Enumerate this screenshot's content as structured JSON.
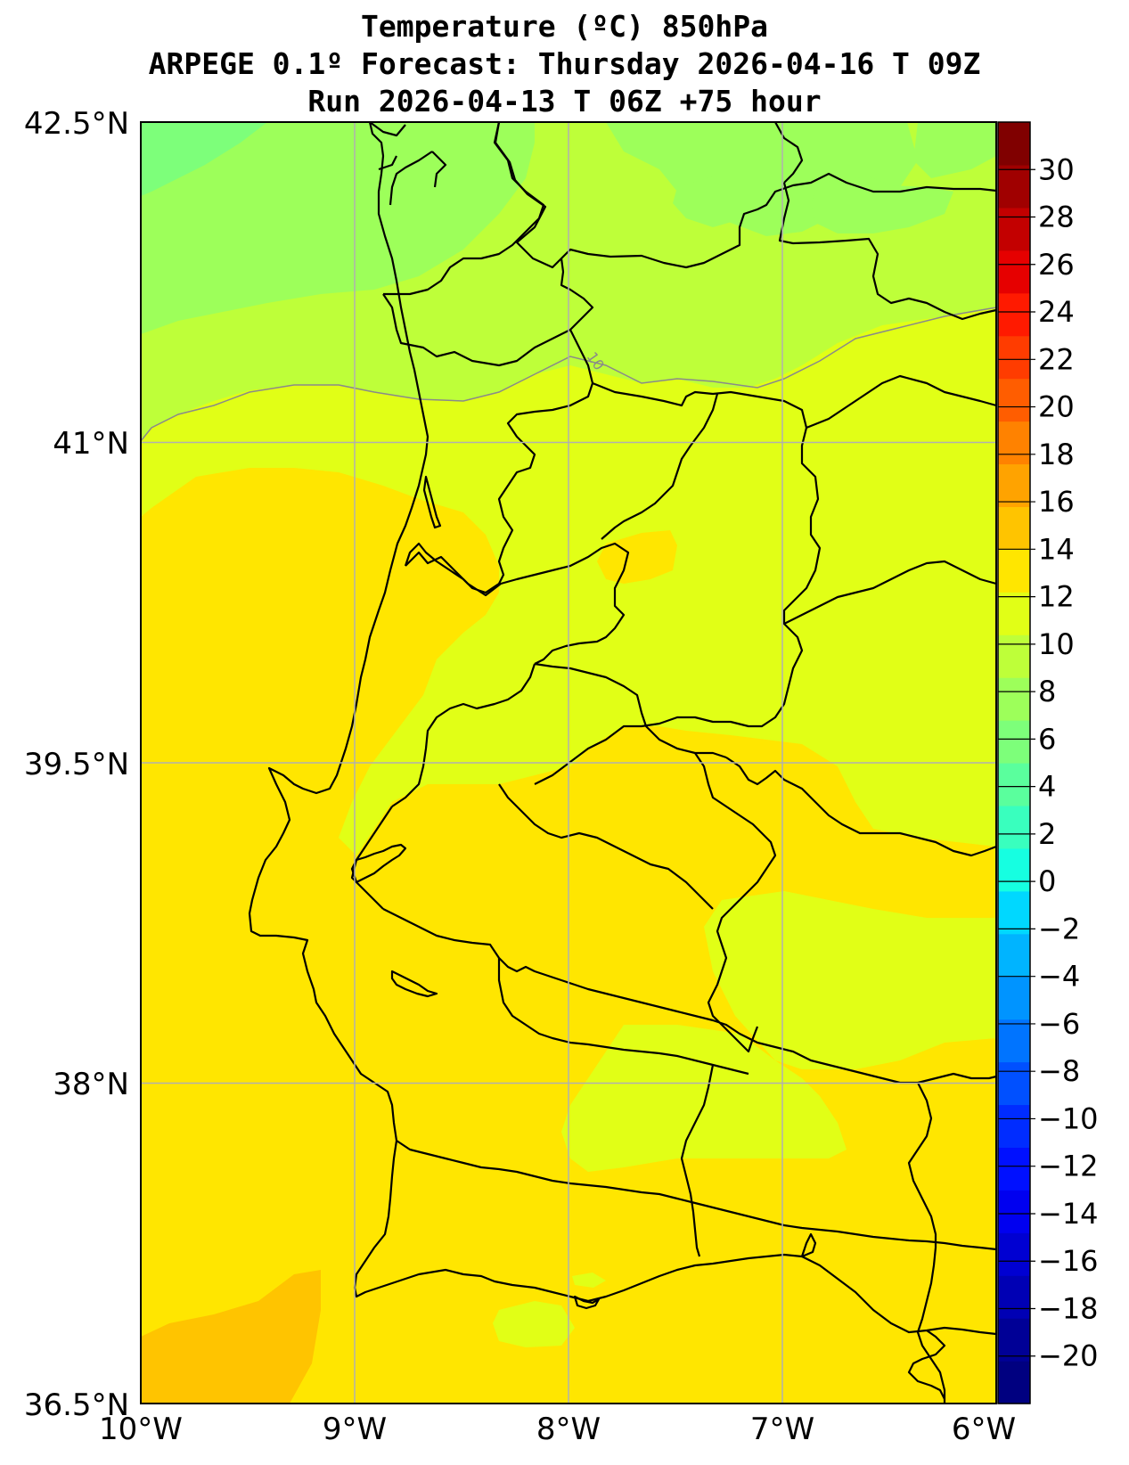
{
  "title": {
    "line1": "Temperature (ºC) 850hPa",
    "line2": "ARPEGE 0.1º Forecast: Thursday 2026-04-16 T 09Z",
    "line3": "Run 2026-04-13 T 06Z +75 hour"
  },
  "map": {
    "lat_range": [
      36.5,
      42.5
    ],
    "lon_range": [
      -10,
      -6
    ],
    "lat_ticks": [
      {
        "value": 42.5,
        "label": "42.5°N"
      },
      {
        "value": 41,
        "label": "41°N"
      },
      {
        "value": 39.5,
        "label": "39.5°N"
      },
      {
        "value": 38,
        "label": "38°N"
      },
      {
        "value": 36.5,
        "label": "36.5°N"
      }
    ],
    "lon_ticks": [
      {
        "value": -10,
        "label": "10°W"
      },
      {
        "value": -9,
        "label": "9°W"
      },
      {
        "value": -8,
        "label": "8°W"
      },
      {
        "value": -7,
        "label": "7°W"
      },
      {
        "value": -6,
        "label": "6°W"
      }
    ],
    "contour_label": "10",
    "grid": true
  },
  "colorbar": {
    "ticks": [
      30,
      28,
      26,
      24,
      22,
      20,
      18,
      16,
      14,
      12,
      10,
      8,
      6,
      4,
      2,
      0,
      -2,
      -4,
      -6,
      -8,
      -10,
      -12,
      -14,
      -16,
      -18,
      -20
    ],
    "tick_labels": [
      "30",
      "28",
      "26",
      "24",
      "22",
      "20",
      "18",
      "16",
      "14",
      "12",
      "10",
      "8",
      "6",
      "4",
      "2",
      "0",
      "−2",
      "−4",
      "−6",
      "−8",
      "−10",
      "−12",
      "−14",
      "−16",
      "−18",
      "−20"
    ],
    "colors": [
      "#000080",
      "#000096",
      "#0000b4",
      "#0000d2",
      "#0000f0",
      "#0010ff",
      "#002cff",
      "#0050ff",
      "#0074ff",
      "#0094ff",
      "#00b4ff",
      "#00d8ff",
      "#16ffe1",
      "#39ffbe",
      "#5aff9d",
      "#7dff7a",
      "#9dff5a",
      "#beff39",
      "#e1ff16",
      "#ffe600",
      "#ffc400",
      "#ffa300",
      "#ff8200",
      "#ff5d00",
      "#ff3c00",
      "#ff1a00",
      "#e60000",
      "#c30000",
      "#a00000",
      "#800000"
    ]
  },
  "field_colors": {
    "green_light": "#7dff7a",
    "green": "#9dff5a",
    "lime": "#beff39",
    "yellow_green": "#e1ff16",
    "yellow": "#ffe600",
    "orange_yellow": "#ffc400"
  }
}
